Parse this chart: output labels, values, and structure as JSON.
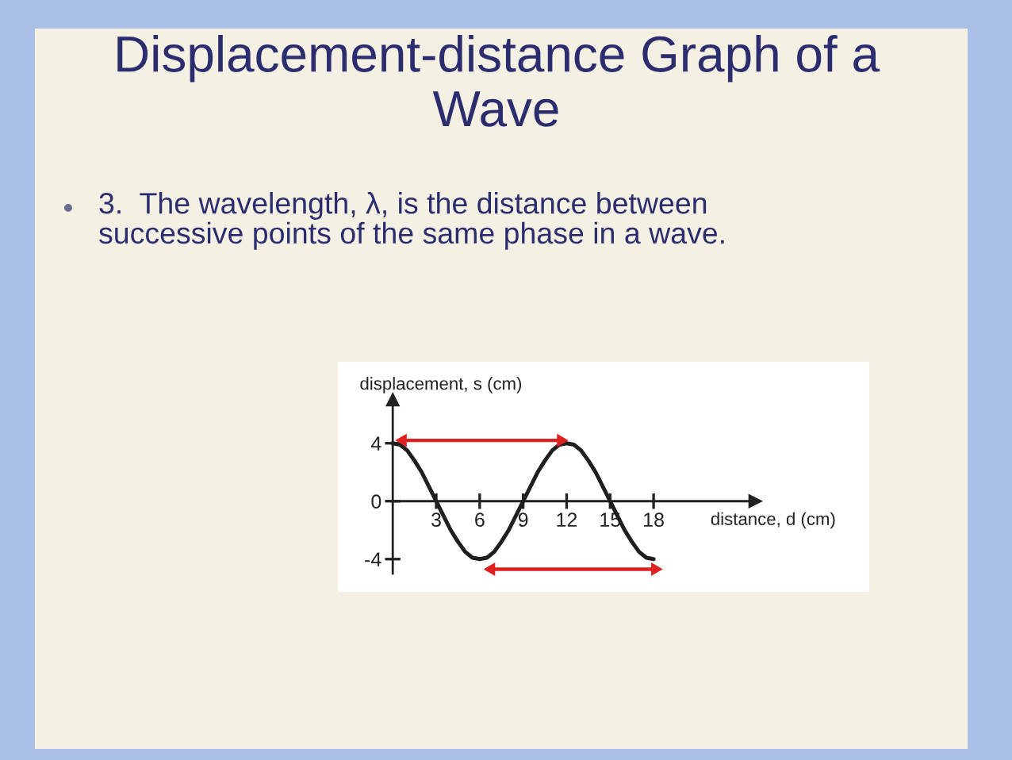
{
  "chart_data": {
    "type": "line",
    "title": "Displacement-distance Graph of a Wave",
    "xlabel": "distance, d (cm)",
    "ylabel": "displacement, s (cm)",
    "annotations": [
      "3.  The wavelength, λ, is the distance between successive points of the same phase in a wave."
    ],
    "xlim": [
      0,
      25
    ],
    "ylim": [
      -5,
      7
    ],
    "xticks": [
      3,
      6,
      9,
      12,
      15,
      18
    ],
    "yticks": [
      -4,
      0,
      4
    ],
    "series": [
      {
        "color": "#1f1f1f",
        "x": [
          0,
          0.5,
          1,
          1.5,
          2,
          2.5,
          3,
          3.5,
          4,
          4.5,
          5,
          5.5,
          6,
          6.5,
          7,
          7.5,
          8,
          8.5,
          9,
          9.5,
          10,
          10.5,
          11,
          11.5,
          12,
          12.5,
          13,
          13.5,
          14,
          14.5,
          15,
          15.5,
          16,
          16.5,
          17,
          17.5,
          18
        ],
        "values": [
          4.0,
          3.9,
          3.5,
          2.8,
          2.0,
          1.0,
          0,
          -1.0,
          -2.0,
          -2.8,
          -3.5,
          -3.9,
          -4.0,
          -3.9,
          -3.5,
          -2.8,
          -2.0,
          -1.0,
          0,
          1.0,
          2.0,
          2.8,
          3.5,
          3.9,
          4.0,
          3.9,
          3.5,
          2.8,
          2.0,
          1.0,
          0,
          -1.0,
          -2.0,
          -2.8,
          -3.5,
          -3.9,
          -4.0
        ]
      },
      {
        "type": "line",
        "color": "#e02020",
        "marker": "triangle",
        "x": [
          0.7,
          11.6
        ],
        "values": [
          4.2,
          4.2
        ]
      },
      {
        "type": "line",
        "color": "#e02020",
        "marker": "triangle",
        "x": [
          6.8,
          18.1
        ],
        "values": [
          -4.7,
          -4.7
        ]
      }
    ]
  }
}
